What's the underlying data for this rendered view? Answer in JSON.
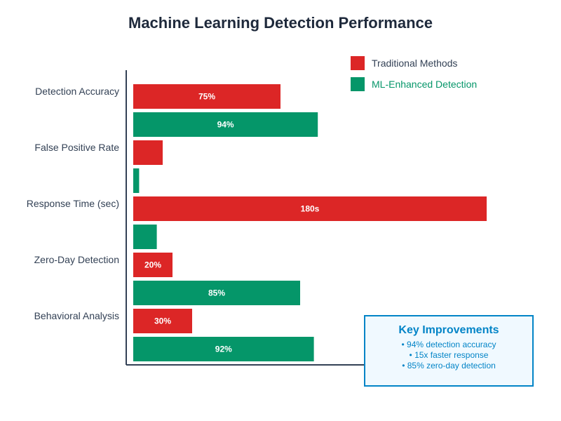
{
  "colors": {
    "traditional": "#dc2626",
    "ml": "#059669",
    "title": "#1e293b",
    "label": "#334155",
    "axis": "#334155",
    "bar_text": "#ffffff",
    "box_border": "#0284c7",
    "box_fill": "#f0f9ff",
    "box_text": "#0284c7"
  },
  "chart_data": {
    "type": "bar",
    "orientation": "horizontal",
    "title": "Machine Learning Detection Performance",
    "categories": [
      "Detection Accuracy",
      "False Positive Rate",
      "Response Time (sec)",
      "Zero-Day Detection",
      "Behavioral Analysis"
    ],
    "series": [
      {
        "name": "Traditional Methods",
        "color_key": "traditional",
        "values": [
          75,
          15,
          180,
          20,
          30
        ],
        "labels": [
          "75%",
          "",
          "180s",
          "20%",
          "30%"
        ]
      },
      {
        "name": "ML-Enhanced Detection",
        "color_key": "ml",
        "values": [
          94,
          3,
          12,
          85,
          92
        ],
        "labels": [
          "94%",
          "",
          "",
          "85%",
          "92%"
        ]
      }
    ],
    "xlim": [
      0,
      200
    ],
    "xlabel": "",
    "ylabel": "",
    "grid": false,
    "legend_position": "top-right"
  },
  "key_improvements": {
    "title": "Key Improvements",
    "items": [
      "• 94% detection accuracy",
      "• 15x faster response",
      "• 85% zero-day detection"
    ]
  }
}
